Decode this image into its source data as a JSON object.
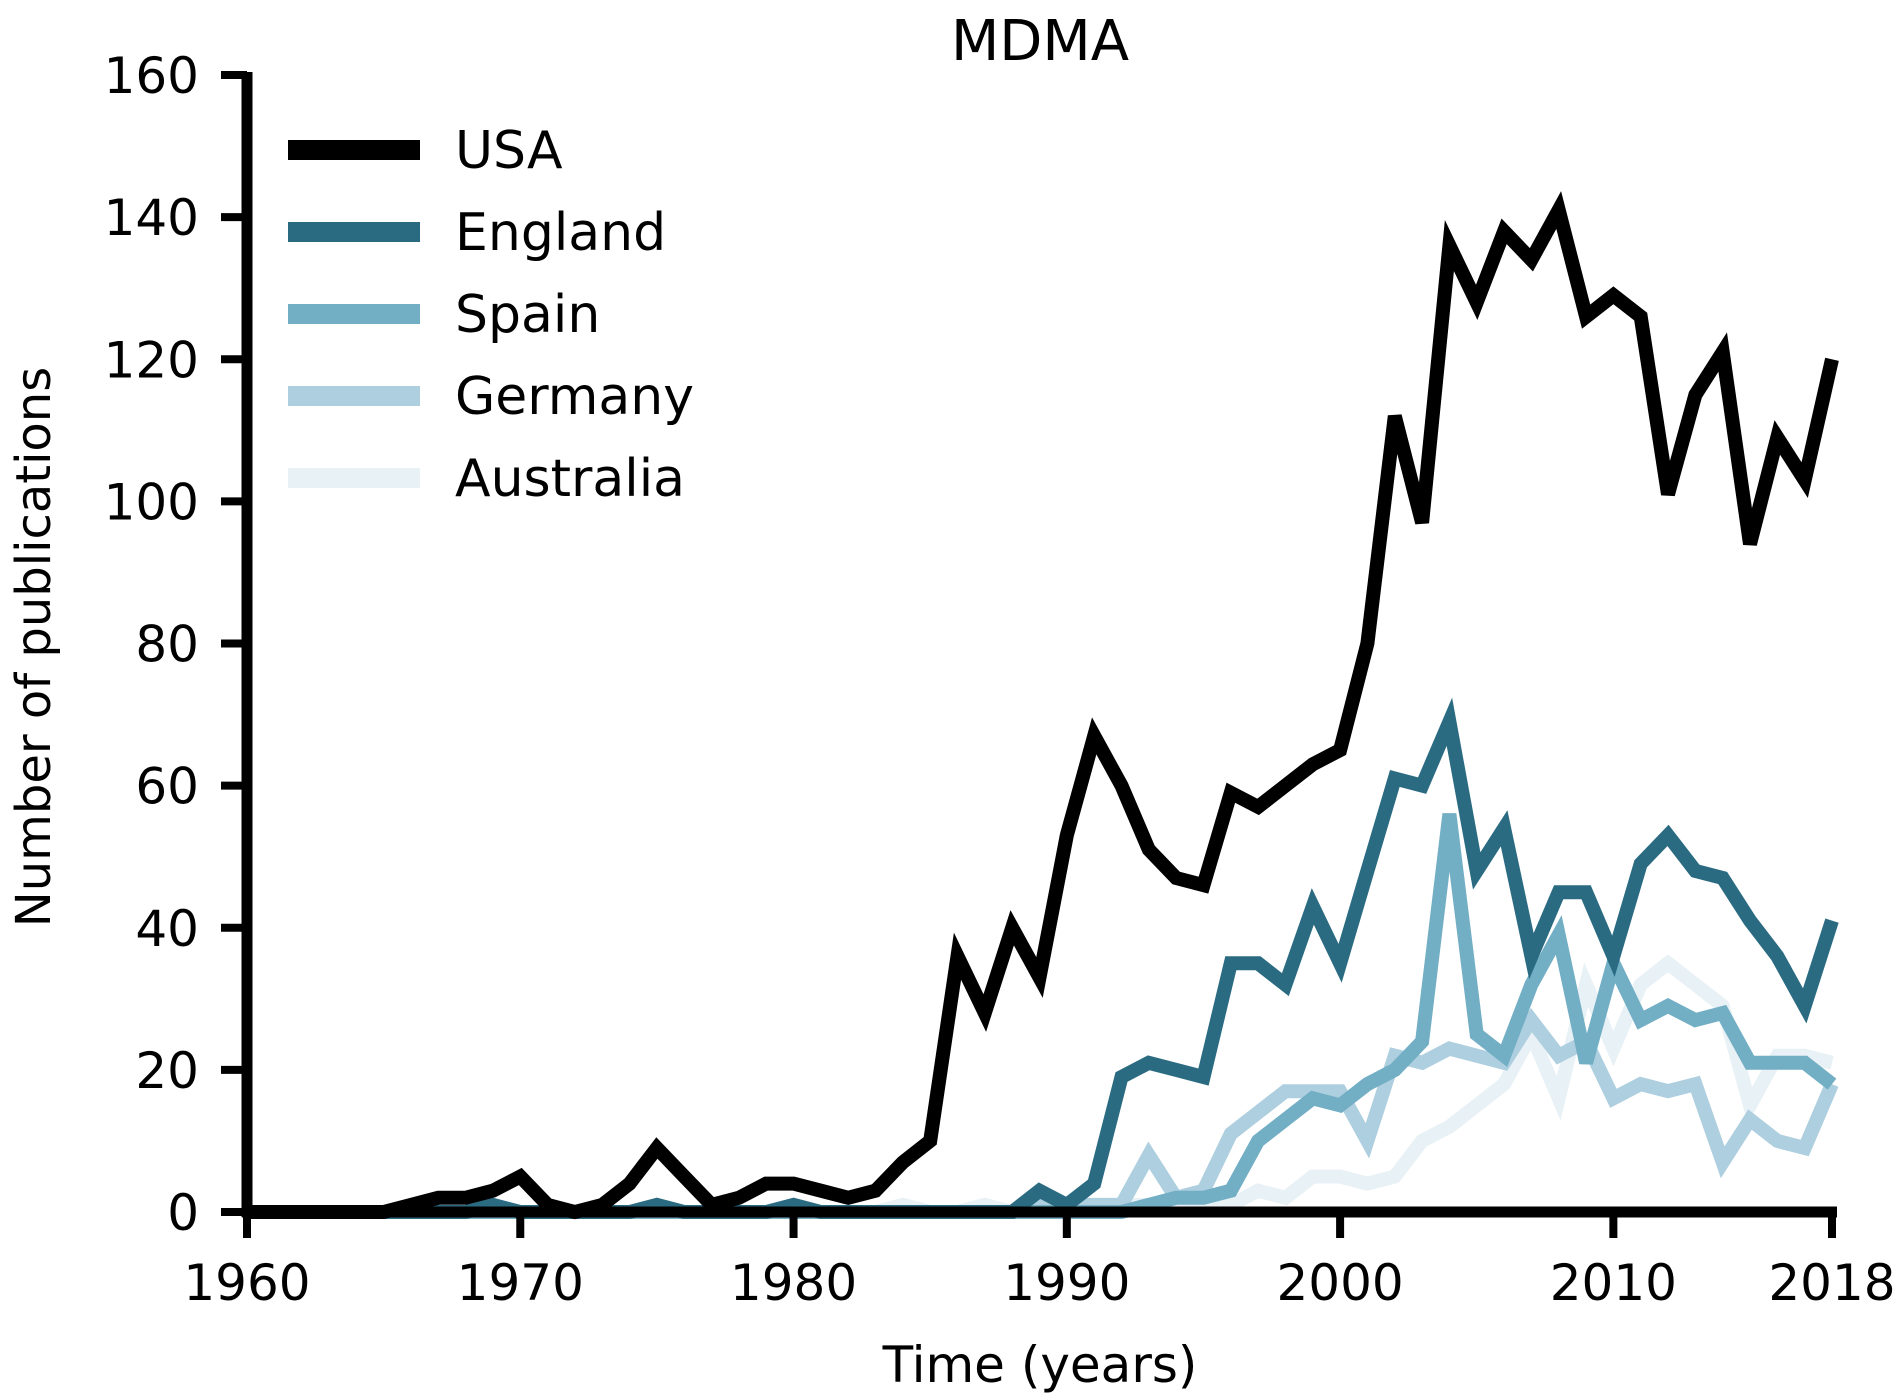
{
  "chart_data": {
    "type": "line",
    "title": "MDMA",
    "xlabel": "Time (years)",
    "ylabel": "Number of publications",
    "xlim": [
      1960,
      2018
    ],
    "ylim": [
      0,
      160
    ],
    "xticks": [
      1960,
      1970,
      1980,
      1990,
      2000,
      2010,
      2018
    ],
    "yticks": [
      0,
      20,
      40,
      60,
      80,
      100,
      120,
      140,
      160
    ],
    "grid": false,
    "legend_position": "top-left",
    "x": [
      1960,
      1961,
      1962,
      1963,
      1964,
      1965,
      1966,
      1967,
      1968,
      1969,
      1970,
      1971,
      1972,
      1973,
      1974,
      1975,
      1976,
      1977,
      1978,
      1979,
      1980,
      1981,
      1982,
      1983,
      1984,
      1985,
      1986,
      1987,
      1988,
      1989,
      1990,
      1991,
      1992,
      1993,
      1994,
      1995,
      1996,
      1997,
      1998,
      1999,
      2000,
      2001,
      2002,
      2003,
      2004,
      2005,
      2006,
      2007,
      2008,
      2009,
      2010,
      2011,
      2012,
      2013,
      2014,
      2015,
      2016,
      2017,
      2018
    ],
    "series": [
      {
        "name": "USA",
        "color": "#000000",
        "values": [
          0,
          0,
          0,
          0,
          0,
          0,
          1,
          2,
          2,
          3,
          5,
          1,
          0,
          1,
          4,
          9,
          5,
          1,
          2,
          4,
          4,
          3,
          2,
          3,
          7,
          10,
          36,
          28,
          40,
          33,
          53,
          67,
          60,
          51,
          47,
          46,
          59,
          57,
          60,
          63,
          65,
          80,
          112,
          97,
          136,
          128,
          138,
          134,
          141,
          126,
          129,
          126,
          101,
          115,
          121,
          94,
          109,
          103,
          120
        ]
      },
      {
        "name": "England",
        "color": "#2a6b82",
        "values": [
          0,
          0,
          0,
          0,
          0,
          0,
          0,
          0,
          0,
          1,
          0,
          0,
          0,
          0,
          0,
          1,
          0,
          0,
          0,
          0,
          1,
          0,
          0,
          0,
          0,
          0,
          0,
          0,
          0,
          3,
          1,
          4,
          19,
          21,
          20,
          19,
          35,
          35,
          32,
          43,
          35,
          48,
          61,
          60,
          69,
          48,
          54,
          36,
          45,
          45,
          36,
          49,
          53,
          48,
          47,
          41,
          36,
          29,
          41
        ]
      },
      {
        "name": "Spain",
        "color": "#72aec4",
        "values": [
          0,
          0,
          0,
          0,
          0,
          0,
          0,
          0,
          0,
          0,
          0,
          0,
          0,
          0,
          0,
          0,
          0,
          0,
          0,
          0,
          0,
          0,
          0,
          0,
          0,
          0,
          0,
          0,
          0,
          0,
          0,
          0,
          0,
          1,
          2,
          2,
          3,
          10,
          13,
          16,
          15,
          18,
          20,
          24,
          56,
          25,
          22,
          32,
          39,
          21,
          35,
          27,
          29,
          27,
          28,
          21,
          21,
          21,
          18
        ]
      },
      {
        "name": "Germany",
        "color": "#aecfdf",
        "values": [
          0,
          0,
          0,
          0,
          0,
          0,
          0,
          0,
          0,
          0,
          0,
          0,
          0,
          0,
          0,
          0,
          0,
          0,
          0,
          0,
          0,
          0,
          0,
          0,
          0,
          0,
          0,
          0,
          0,
          1,
          1,
          1,
          1,
          8,
          2,
          3,
          11,
          14,
          17,
          17,
          17,
          10,
          22,
          21,
          23,
          22,
          21,
          27,
          22,
          24,
          16,
          18,
          17,
          18,
          7,
          13,
          10,
          9,
          18
        ]
      },
      {
        "name": "Australia",
        "color": "#e8f1f5",
        "values": [
          0,
          0,
          0,
          0,
          0,
          0,
          0,
          0,
          0,
          0,
          0,
          0,
          0,
          0,
          0,
          0,
          0,
          0,
          0,
          0,
          0,
          0,
          0,
          0,
          1,
          0,
          0,
          1,
          0,
          1,
          1,
          1,
          1,
          1,
          1,
          1,
          1,
          3,
          2,
          5,
          5,
          4,
          5,
          10,
          12,
          15,
          18,
          25,
          16,
          32,
          23,
          32,
          35,
          32,
          29,
          15,
          22,
          22,
          21
        ]
      }
    ]
  }
}
